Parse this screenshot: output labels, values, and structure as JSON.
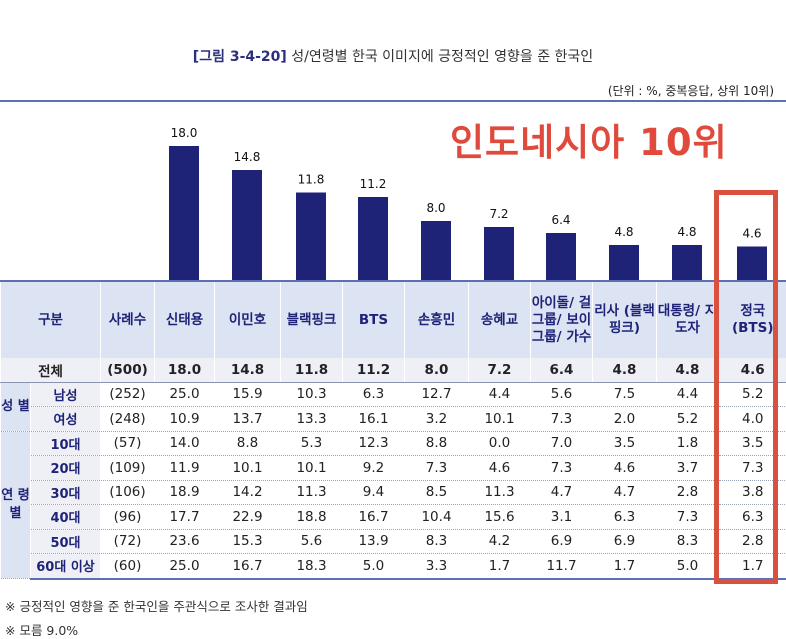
{
  "figure_label": "[그림 3-4-20]",
  "figure_title": "성/연령별 한국 이미지에 긍정적인 영향을 준 한국인",
  "unit_note": "(단위 : %, 중복응답, 상위 10위)",
  "overlay_text": "인도네시아 10위",
  "colors": {
    "bar": "#1f2378",
    "highlight": "#d9503f",
    "header_bg": "#dce3f3"
  },
  "chart_data": {
    "type": "bar",
    "title": "성/연령별 한국 이미지에 긍정적인 영향을 준 한국인",
    "categories": [
      "신태용",
      "이민호",
      "블랙핑크",
      "BTS",
      "손흥민",
      "송혜교",
      "아이돌/걸그룹/보이그룹/가수",
      "리사(블랙핑크)",
      "대통령/지도자",
      "정국(BTS)"
    ],
    "values": [
      18.0,
      14.8,
      11.8,
      11.2,
      8.0,
      7.2,
      6.4,
      4.8,
      4.8,
      4.6
    ],
    "value_labels": [
      "18.0",
      "14.8",
      "11.8",
      "11.2",
      "8.0",
      "7.2",
      "6.4",
      "4.8",
      "4.8",
      "4.6"
    ],
    "ylabel": "%",
    "ylim": [
      0,
      18.0
    ],
    "highlighted_category": "정국(BTS)"
  },
  "table": {
    "header": {
      "group": "구분",
      "n": "사례수",
      "cols": [
        "신태용",
        "이민호",
        "블랙핑크",
        "BTS",
        "손흥민",
        "송혜교",
        "아이돌/ 걸그룹/ 보이그룹/ 가수",
        "리사 (블랙핑크)",
        "대통령/ 지도자",
        "정국 (BTS)"
      ]
    },
    "total": {
      "label": "전체",
      "n": "(500)",
      "values": [
        "18.0",
        "14.8",
        "11.8",
        "11.2",
        "8.0",
        "7.2",
        "6.4",
        "4.8",
        "4.8",
        "4.6"
      ]
    },
    "groups": [
      {
        "name": "성 별",
        "rows": [
          {
            "label": "남성",
            "n": "(252)",
            "values": [
              "25.0",
              "15.9",
              "10.3",
              "6.3",
              "12.7",
              "4.4",
              "5.6",
              "7.5",
              "4.4",
              "5.2"
            ]
          },
          {
            "label": "여성",
            "n": "(248)",
            "values": [
              "10.9",
              "13.7",
              "13.3",
              "16.1",
              "3.2",
              "10.1",
              "7.3",
              "2.0",
              "5.2",
              "4.0"
            ]
          }
        ]
      },
      {
        "name": "연 령 별",
        "rows": [
          {
            "label": "10대",
            "n": "(57)",
            "values": [
              "14.0",
              "8.8",
              "5.3",
              "12.3",
              "8.8",
              "0.0",
              "7.0",
              "3.5",
              "1.8",
              "3.5"
            ]
          },
          {
            "label": "20대",
            "n": "(109)",
            "values": [
              "11.9",
              "10.1",
              "10.1",
              "9.2",
              "7.3",
              "4.6",
              "7.3",
              "4.6",
              "3.7",
              "7.3"
            ]
          },
          {
            "label": "30대",
            "n": "(106)",
            "values": [
              "18.9",
              "14.2",
              "11.3",
              "9.4",
              "8.5",
              "11.3",
              "4.7",
              "4.7",
              "2.8",
              "3.8"
            ]
          },
          {
            "label": "40대",
            "n": "(96)",
            "values": [
              "17.7",
              "22.9",
              "18.8",
              "16.7",
              "10.4",
              "15.6",
              "3.1",
              "6.3",
              "7.3",
              "6.3"
            ]
          },
          {
            "label": "50대",
            "n": "(72)",
            "values": [
              "23.6",
              "15.3",
              "5.6",
              "13.9",
              "8.3",
              "4.2",
              "6.9",
              "6.9",
              "8.3",
              "2.8"
            ]
          },
          {
            "label": "60대 이상",
            "n": "(60)",
            "values": [
              "25.0",
              "16.7",
              "18.3",
              "5.0",
              "3.3",
              "1.7",
              "11.7",
              "1.7",
              "5.0",
              "1.7"
            ]
          }
        ]
      }
    ]
  },
  "notes": [
    "※ 긍정적인 영향을 준 한국인을 주관식으로 조사한 결과임",
    "※ 모름 9.0%"
  ]
}
